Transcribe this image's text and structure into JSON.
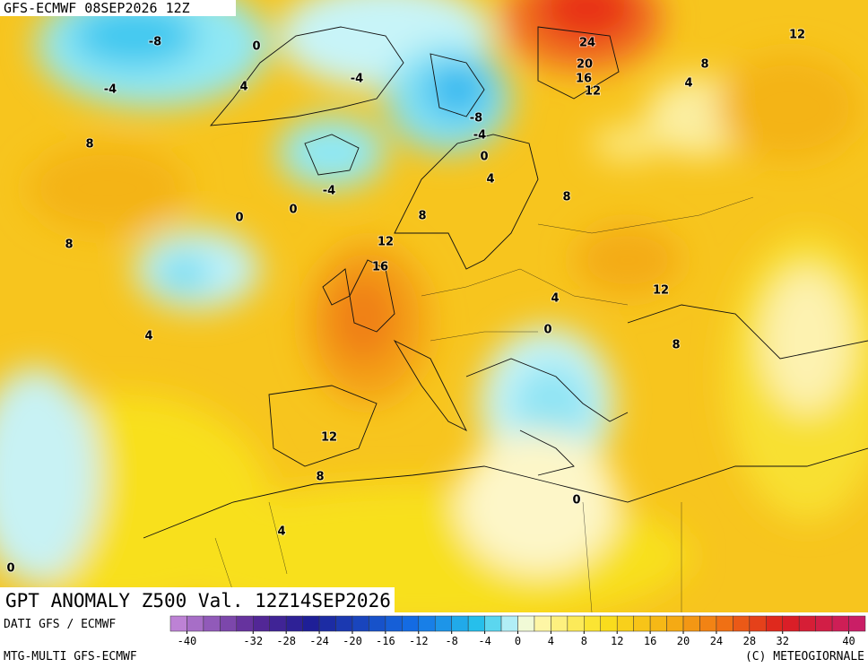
{
  "header": {
    "run": "GFS-ECMWF 08SEP2026 12Z",
    "title": "GPT ANOMALY Z500 Val. 12Z14SEP2026"
  },
  "contour_labels": [
    -8,
    0,
    -4,
    4,
    -4,
    24,
    20,
    16,
    12,
    12,
    8,
    4,
    -8,
    -4,
    0,
    8,
    4,
    -4,
    8,
    0,
    0,
    8,
    8,
    12,
    16,
    4,
    12,
    0,
    4,
    8,
    12,
    8,
    0,
    4,
    0
  ],
  "colorbar": {
    "lim": [
      -42,
      42
    ],
    "ticks": [
      -40,
      -32,
      -28,
      -24,
      -20,
      -16,
      -12,
      -8,
      -4,
      0,
      4,
      8,
      12,
      16,
      20,
      24,
      28,
      32,
      40
    ]
  },
  "footer": {
    "source": "DATI GFS / ECMWF",
    "model": "MTG-MULTI GFS-ECMWF",
    "copyright": "(C) METEOGIORNALE"
  }
}
